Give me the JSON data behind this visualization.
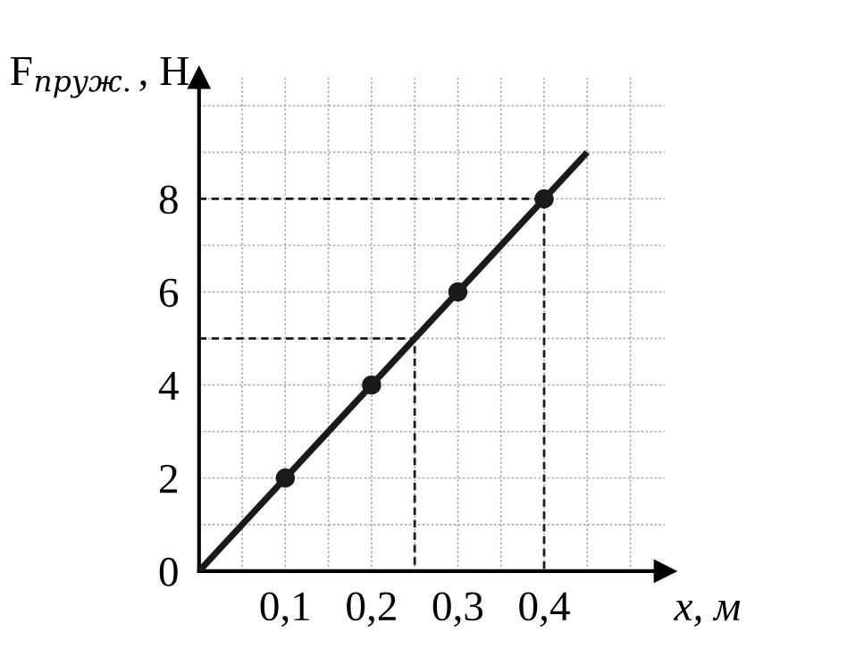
{
  "chart_data": {
    "type": "line",
    "xlabel": "x, м",
    "ylabel": "F$_{пруж.}$, Н",
    "xlim": [
      0,
      0.54
    ],
    "ylim": [
      0,
      10.6
    ],
    "xticks": [
      {
        "value": 0.05,
        "label": null
      },
      {
        "value": 0.1,
        "label": "0,1"
      },
      {
        "value": 0.15,
        "label": null
      },
      {
        "value": 0.2,
        "label": "0,2"
      },
      {
        "value": 0.25,
        "label": null
      },
      {
        "value": 0.3,
        "label": "0,3"
      },
      {
        "value": 0.35,
        "label": null
      },
      {
        "value": 0.4,
        "label": "0,4"
      },
      {
        "value": 0.45,
        "label": null
      },
      {
        "value": 0.5,
        "label": null
      }
    ],
    "yticks": [
      0,
      {
        "value": 1,
        "label": null
      },
      2,
      {
        "value": 3,
        "label": null
      },
      4,
      {
        "value": 5,
        "label": null
      },
      6,
      {
        "value": 7,
        "label": null
      },
      8,
      {
        "value": 9,
        "label": null
      },
      {
        "value": 10,
        "label": null
      }
    ],
    "grid": true,
    "series": [
      {
        "color": "#1a1a1a",
        "x": [
          0,
          0.45
        ],
        "values": [
          0,
          9
        ],
        "marker": "none",
        "line_style": "solid"
      },
      {
        "type": "scatter",
        "color": "#1a1a1a",
        "x": [
          0.1,
          0.2,
          0.3,
          0.4
        ],
        "values": [
          2,
          4,
          6,
          8
        ],
        "marker": "circle"
      },
      {
        "type": "line",
        "color": "#1a1a1a",
        "x": [
          0,
          0.25,
          0.25
        ],
        "values": [
          5,
          5,
          0
        ],
        "marker": "none",
        "line_style": "dashed"
      },
      {
        "type": "line",
        "color": "#1a1a1a",
        "x": [
          0,
          0.4,
          0.4
        ],
        "values": [
          8,
          8,
          0
        ],
        "marker": "none",
        "line_style": "dashed"
      }
    ]
  }
}
